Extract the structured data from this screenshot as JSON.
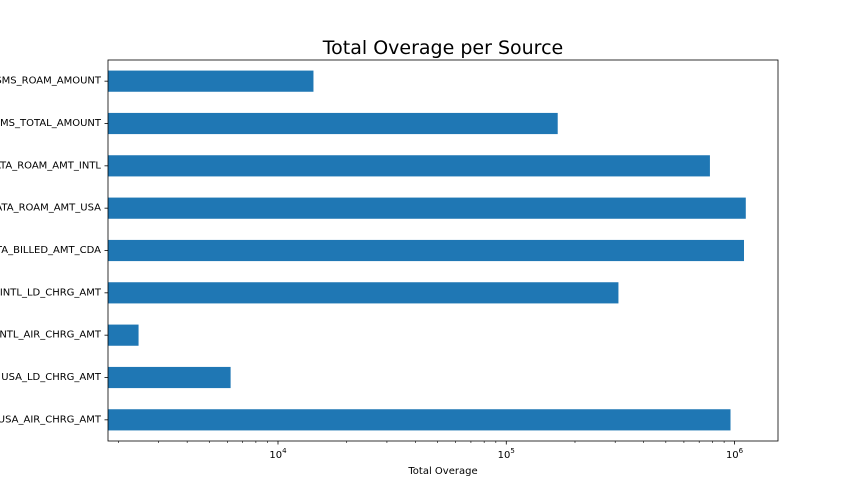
{
  "chart_data": {
    "type": "bar",
    "orientation": "horizontal",
    "title": "Total Overage per Source",
    "xlabel": "Total Overage",
    "ylabel": "",
    "x_scale": "log",
    "xlim": [
      1800,
      1550000
    ],
    "x_ticks": [
      {
        "value": 10000,
        "base": "10",
        "exp": "4"
      },
      {
        "value": 100000,
        "base": "10",
        "exp": "5"
      },
      {
        "value": 1000000,
        "base": "10",
        "exp": "6"
      }
    ],
    "categories": [
      "SMS_ROAM_AMOUNT",
      "SMS_TOTAL_AMOUNT",
      "DATA_ROAM_AMT_INTL",
      "DATA_ROAM_AMT_USA",
      "DATA_BILLED_AMT_CDA",
      "INTL_LD_CHRG_AMT",
      "INTL_AIR_CHRG_AMT",
      "USA_LD_CHRG_AMT",
      "USA_AIR_CHRG_AMT"
    ],
    "values": [
      14300,
      168000,
      780000,
      1120000,
      1100000,
      310000,
      2450,
      6200,
      960000
    ],
    "bar_color": "#1f77b4",
    "grid": false,
    "legend": "none"
  }
}
